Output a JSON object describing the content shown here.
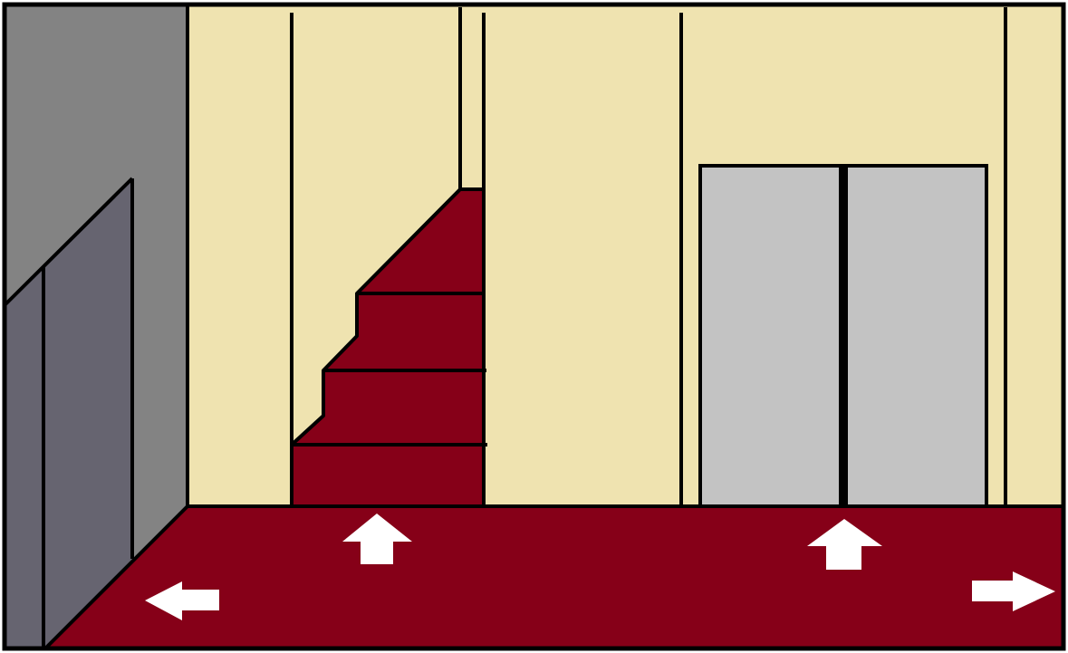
{
  "scene": {
    "colors": {
      "wall": "#EFE3B0",
      "floor": "#860018",
      "stairs": "#860018",
      "left_wall": "#838383",
      "left_panel": "#666470",
      "elevator_door": "#C3C3C3",
      "outline": "#000000",
      "arrow": "#FFFFFF"
    },
    "objects": {
      "staircase": "staircase",
      "elevator": "elevator",
      "left_wall": "left-wall",
      "floor": "floor"
    },
    "navigation": {
      "arrows": [
        {
          "id": "stairs",
          "direction": "up",
          "icon": "arrow-up-icon"
        },
        {
          "id": "elevator",
          "direction": "up",
          "icon": "arrow-up-icon"
        },
        {
          "id": "left",
          "direction": "left",
          "icon": "arrow-left-icon"
        },
        {
          "id": "right",
          "direction": "right",
          "icon": "arrow-right-icon"
        }
      ]
    }
  }
}
